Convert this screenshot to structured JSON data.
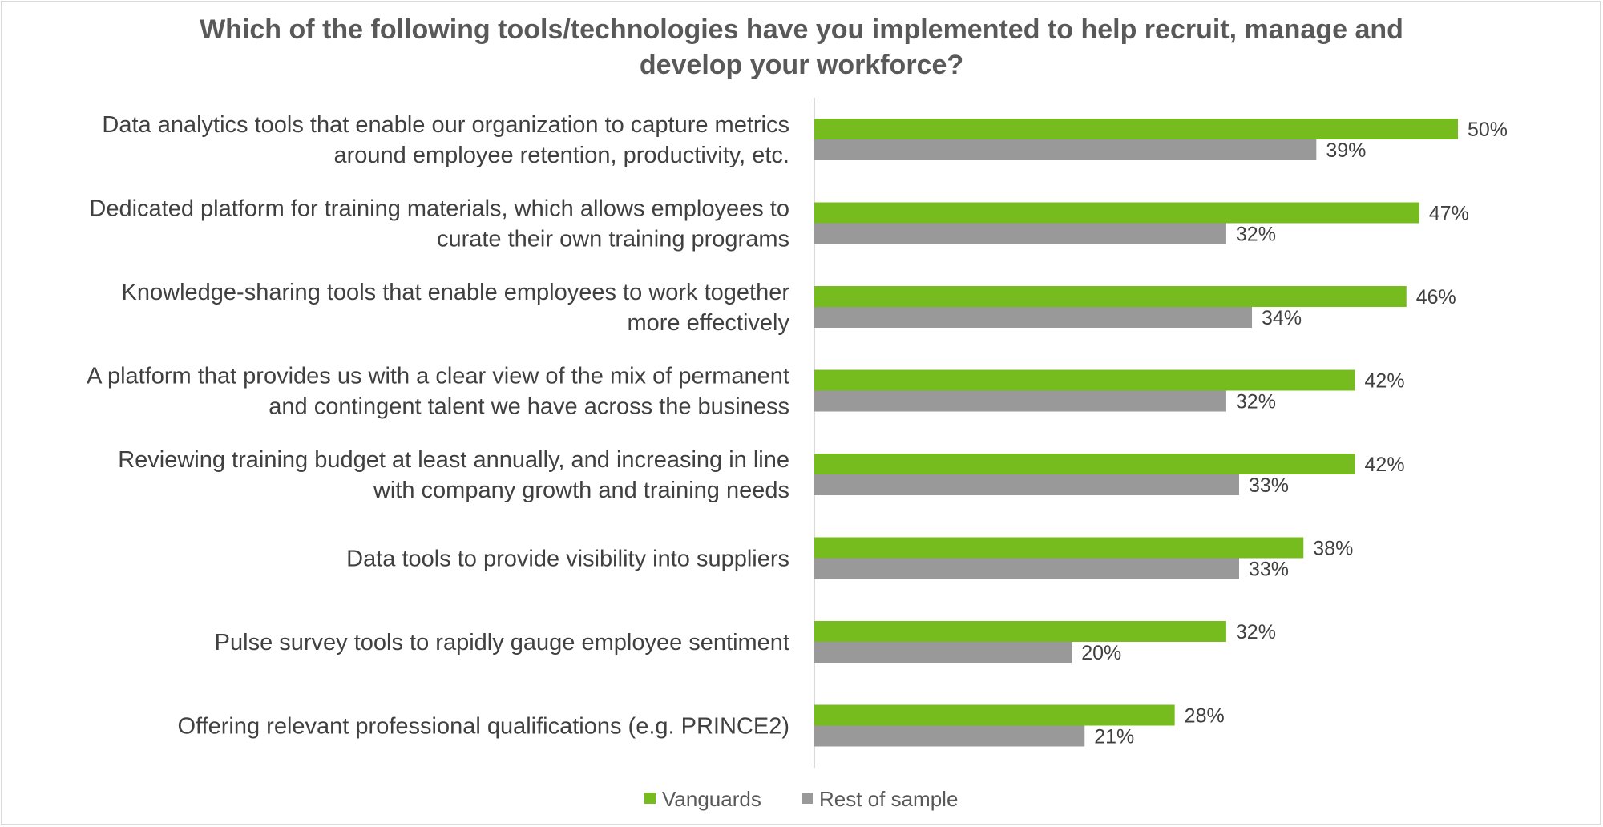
{
  "chart_data": {
    "type": "bar",
    "orientation": "horizontal",
    "title": "Which of the following tools/technologies have you implemented to help recruit, manage and develop your workforce?",
    "title_lines": [
      "Which of the following tools/technologies have you implemented to help recruit, manage and",
      "develop your workforce?"
    ],
    "categories": [
      [
        "Data analytics tools that enable our organization to capture metrics",
        "around employee retention, productivity, etc."
      ],
      [
        "Dedicated platform for training materials, which allows employees to",
        "curate their own training programs"
      ],
      [
        "Knowledge-sharing tools that enable employees to work together",
        "more effectively"
      ],
      [
        "A platform that provides us with a clear view of the mix of permanent",
        "and contingent talent we have across the business"
      ],
      [
        "Reviewing training budget at least annually, and increasing in line",
        "with company growth and training needs"
      ],
      [
        "Data tools to provide visibility into suppliers"
      ],
      [
        "Pulse survey tools to rapidly gauge employee sentiment"
      ],
      [
        "Offering relevant professional qualifications (e.g. PRINCE2)"
      ]
    ],
    "series": [
      {
        "name": "Vanguards",
        "color": "#77bc1f",
        "values": [
          50,
          47,
          46,
          42,
          42,
          38,
          32,
          28
        ],
        "labels": [
          "50%",
          "47%",
          "46%",
          "42%",
          "42%",
          "38%",
          "32%",
          "28%"
        ]
      },
      {
        "name": "Rest of sample",
        "color": "#999999",
        "values": [
          39,
          32,
          34,
          32,
          33,
          33,
          20,
          21
        ],
        "labels": [
          "39%",
          "32%",
          "34%",
          "32%",
          "33%",
          "33%",
          "20%",
          "21%"
        ]
      }
    ],
    "xlim": [
      0,
      60
    ],
    "value_unit": "%",
    "legend_position": "bottom",
    "grid": false
  }
}
